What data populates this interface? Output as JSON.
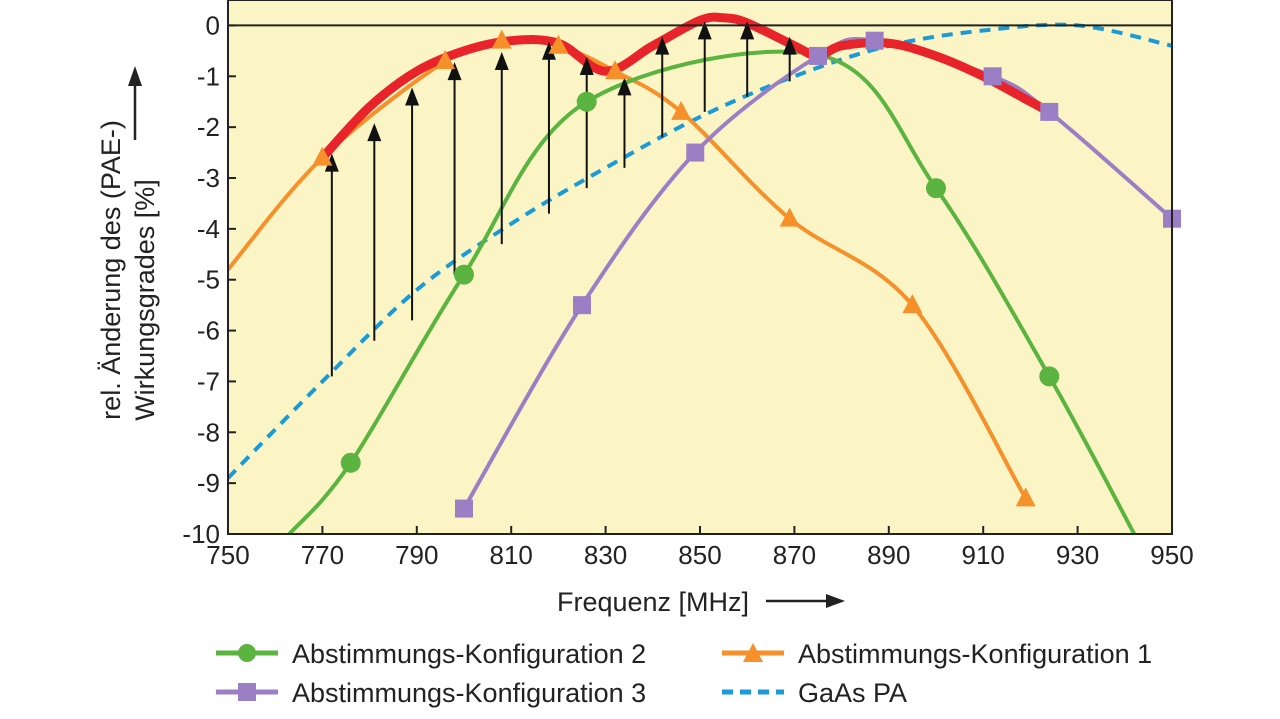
{
  "chart_data": {
    "type": "line",
    "xlabel": "Frequenz [MHz]",
    "ylabel_line1": "rel. Änderung des (PAE-)",
    "ylabel_line2": "Wirkungsgrades [%]",
    "xlim": [
      750,
      950
    ],
    "ylim": [
      -10,
      0.5
    ],
    "xticks": [
      "750",
      "770",
      "790",
      "810",
      "830",
      "850",
      "870",
      "890",
      "910",
      "930",
      "950"
    ],
    "yticks": [
      "0",
      "-1",
      "-2",
      "-3",
      "-4",
      "-5",
      "-6",
      "-7",
      "-8",
      "-9",
      "-10"
    ],
    "grid": false,
    "legend_position": "bottom",
    "colors": {
      "background": "#fbf5c6",
      "config2": "#5cb440",
      "config1": "#f5902a",
      "config3": "#9b7fc4",
      "gaas": "#1a9ad6",
      "envelope": "#e8232a",
      "arrows": "#111111"
    },
    "series": [
      {
        "name": "Abstimmungs-Konfiguration 2",
        "marker": "circle",
        "color": "#5cb440",
        "x": [
          763,
          776,
          800,
          826,
          876,
          900,
          924,
          942
        ],
        "y": [
          -10,
          -8.6,
          -4.9,
          -1.5,
          -0.6,
          -3.2,
          -6.9,
          -10
        ],
        "markers": [
          false,
          true,
          true,
          true,
          false,
          true,
          true,
          false
        ]
      },
      {
        "name": "Abstimmungs-Konfiguration 1",
        "marker": "triangle",
        "color": "#f5902a",
        "x": [
          750,
          770,
          796,
          808,
          820,
          832,
          846,
          869,
          895,
          919
        ],
        "y": [
          -4.8,
          -2.6,
          -0.7,
          -0.3,
          -0.4,
          -0.9,
          -1.7,
          -3.8,
          -5.5,
          -9.3
        ],
        "markers": [
          false,
          true,
          true,
          true,
          true,
          true,
          true,
          true,
          true,
          true
        ]
      },
      {
        "name": "Abstimmungs-Konfiguration 3",
        "marker": "square",
        "color": "#9b7fc4",
        "x": [
          800,
          825,
          849,
          875,
          887,
          912,
          924,
          950
        ],
        "y": [
          -9.5,
          -5.5,
          -2.5,
          -0.6,
          -0.3,
          -1.0,
          -1.7,
          -3.8
        ],
        "markers": [
          true,
          true,
          true,
          true,
          true,
          true,
          true,
          true
        ]
      },
      {
        "name": "GaAs PA",
        "marker": "none",
        "dashed": true,
        "color": "#1a9ad6",
        "x": [
          750,
          770,
          790,
          810,
          830,
          850,
          870,
          890,
          910,
          930,
          950
        ],
        "y": [
          -8.9,
          -7.0,
          -5.2,
          -3.9,
          -2.8,
          -1.8,
          -1.0,
          -0.4,
          -0.1,
          0.0,
          -0.4
        ]
      }
    ],
    "envelope": {
      "x": [
        770,
        780,
        790,
        800,
        810,
        820,
        830,
        840,
        850,
        855,
        860,
        870,
        875,
        880,
        890,
        900,
        910,
        920,
        924
      ],
      "y": [
        -2.6,
        -1.6,
        -0.9,
        -0.5,
        -0.3,
        -0.35,
        -0.9,
        -0.4,
        0.1,
        0.15,
        0.05,
        -0.4,
        -0.6,
        -0.4,
        -0.35,
        -0.6,
        -1.0,
        -1.5,
        -1.7
      ]
    },
    "arrows": [
      {
        "x": 772,
        "from": -6.9,
        "to": -2.6
      },
      {
        "x": 781,
        "from": -6.2,
        "to": -2.0
      },
      {
        "x": 789,
        "from": -5.8,
        "to": -1.3
      },
      {
        "x": 798,
        "from": -4.9,
        "to": -0.8
      },
      {
        "x": 808,
        "from": -4.3,
        "to": -0.6
      },
      {
        "x": 818,
        "from": -3.7,
        "to": -0.4
      },
      {
        "x": 826,
        "from": -3.2,
        "to": -0.7
      },
      {
        "x": 834,
        "from": -2.8,
        "to": -1.1
      },
      {
        "x": 842,
        "from": -2.2,
        "to": -0.3
      },
      {
        "x": 851,
        "from": -1.7,
        "to": 0.0
      },
      {
        "x": 860,
        "from": -1.4,
        "to": 0.0
      },
      {
        "x": 869,
        "from": -1.1,
        "to": -0.3
      }
    ]
  }
}
